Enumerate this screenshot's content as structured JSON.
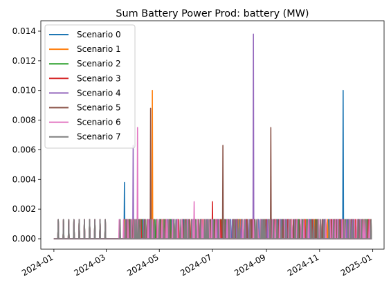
{
  "chart_data": {
    "type": "line",
    "title": "Sum Battery Power Prod: battery (MW)",
    "xlabel": "",
    "ylabel": "",
    "x_axis": {
      "type": "date",
      "range": [
        "2023-12-17",
        "2025-01-14"
      ],
      "ticks": [
        {
          "date": "2024-01-01",
          "label": "2024-01"
        },
        {
          "date": "2024-03-01",
          "label": "2024-03"
        },
        {
          "date": "2024-05-01",
          "label": "2024-05"
        },
        {
          "date": "2024-07-01",
          "label": "2024-07"
        },
        {
          "date": "2024-09-01",
          "label": "2024-09"
        },
        {
          "date": "2024-11-01",
          "label": "2024-11"
        },
        {
          "date": "2025-01-01",
          "label": "2025-01"
        }
      ]
    },
    "y_axis": {
      "range": [
        -0.0007,
        0.0147
      ],
      "ticks": [
        {
          "value": 0.0,
          "label": "0.000"
        },
        {
          "value": 0.002,
          "label": "0.002"
        },
        {
          "value": 0.004,
          "label": "0.004"
        },
        {
          "value": 0.006,
          "label": "0.006"
        },
        {
          "value": 0.008,
          "label": "0.008"
        },
        {
          "value": 0.01,
          "label": "0.010"
        },
        {
          "value": 0.012,
          "label": "0.012"
        },
        {
          "value": 0.014,
          "label": "0.014"
        }
      ]
    },
    "grid": false,
    "legend_position": "top-left",
    "baseline": 0,
    "base_spike_value": 0.0013,
    "series_window": {
      "start": "2024-01-01",
      "end": "2024-12-31"
    },
    "series": [
      {
        "name": "Scenario 0",
        "color": "#1f77b4",
        "spikes": [
          {
            "date": "2024-03-22",
            "value": 0.0038
          },
          {
            "date": "2024-11-28",
            "value": 0.01
          }
        ]
      },
      {
        "name": "Scenario 1",
        "color": "#ff7f0e",
        "spikes": [
          {
            "date": "2024-04-23",
            "value": 0.01
          }
        ]
      },
      {
        "name": "Scenario 2",
        "color": "#2ca02c",
        "spikes": []
      },
      {
        "name": "Scenario 3",
        "color": "#d62728",
        "spikes": [
          {
            "date": "2024-07-01",
            "value": 0.0025
          }
        ]
      },
      {
        "name": "Scenario 4",
        "color": "#9467bd",
        "spikes": [
          {
            "date": "2024-04-01",
            "value": 0.0063
          },
          {
            "date": "2024-08-17",
            "value": 0.0138
          }
        ]
      },
      {
        "name": "Scenario 5",
        "color": "#8c564b",
        "spikes": [
          {
            "date": "2024-04-21",
            "value": 0.0088
          },
          {
            "date": "2024-07-13",
            "value": 0.0063
          },
          {
            "date": "2024-09-06",
            "value": 0.0075
          }
        ]
      },
      {
        "name": "Scenario 6",
        "color": "#e377c2",
        "spikes": [
          {
            "date": "2024-04-06",
            "value": 0.0075
          },
          {
            "date": "2024-06-10",
            "value": 0.0025
          }
        ]
      },
      {
        "name": "Scenario 7",
        "color": "#7f7f7f",
        "spikes": []
      }
    ]
  }
}
